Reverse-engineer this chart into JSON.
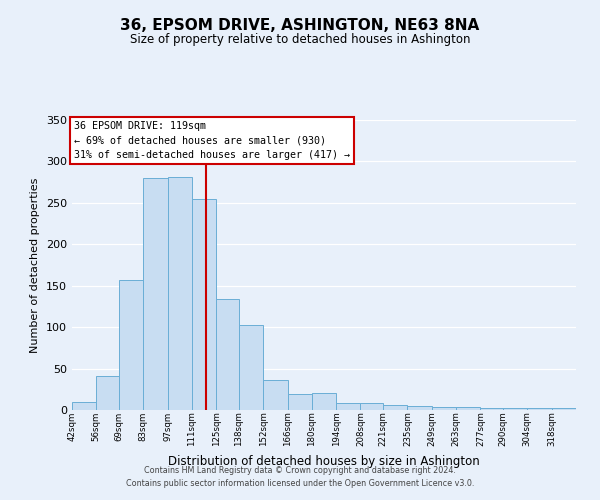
{
  "title": "36, EPSOM DRIVE, ASHINGTON, NE63 8NA",
  "subtitle": "Size of property relative to detached houses in Ashington",
  "xlabel": "Distribution of detached houses by size in Ashington",
  "ylabel": "Number of detached properties",
  "bar_color": "#c8ddf2",
  "bar_edge_color": "#6aaed6",
  "background_color": "#e8f0fa",
  "grid_color": "#ffffff",
  "vline_x": 119,
  "vline_color": "#cc0000",
  "annotation_title": "36 EPSOM DRIVE: 119sqm",
  "annotation_line1": "← 69% of detached houses are smaller (930)",
  "annotation_line2": "31% of semi-detached houses are larger (417) →",
  "annotation_box_color": "white",
  "annotation_box_edge": "#cc0000",
  "bin_edges": [
    42,
    56,
    69,
    83,
    97,
    111,
    125,
    138,
    152,
    166,
    180,
    194,
    208,
    221,
    235,
    249,
    263,
    277,
    290,
    304,
    318,
    332
  ],
  "bin_heights": [
    10,
    41,
    157,
    280,
    281,
    255,
    134,
    103,
    36,
    19,
    21,
    8,
    8,
    6,
    5,
    4,
    4,
    3,
    3,
    3,
    2
  ],
  "tick_labels": [
    "42sqm",
    "56sqm",
    "69sqm",
    "83sqm",
    "97sqm",
    "111sqm",
    "125sqm",
    "138sqm",
    "152sqm",
    "166sqm",
    "180sqm",
    "194sqm",
    "208sqm",
    "221sqm",
    "235sqm",
    "249sqm",
    "263sqm",
    "277sqm",
    "290sqm",
    "304sqm",
    "318sqm"
  ],
  "ylim": [
    0,
    350
  ],
  "yticks": [
    0,
    50,
    100,
    150,
    200,
    250,
    300,
    350
  ],
  "footer_line1": "Contains HM Land Registry data © Crown copyright and database right 2024.",
  "footer_line2": "Contains public sector information licensed under the Open Government Licence v3.0."
}
